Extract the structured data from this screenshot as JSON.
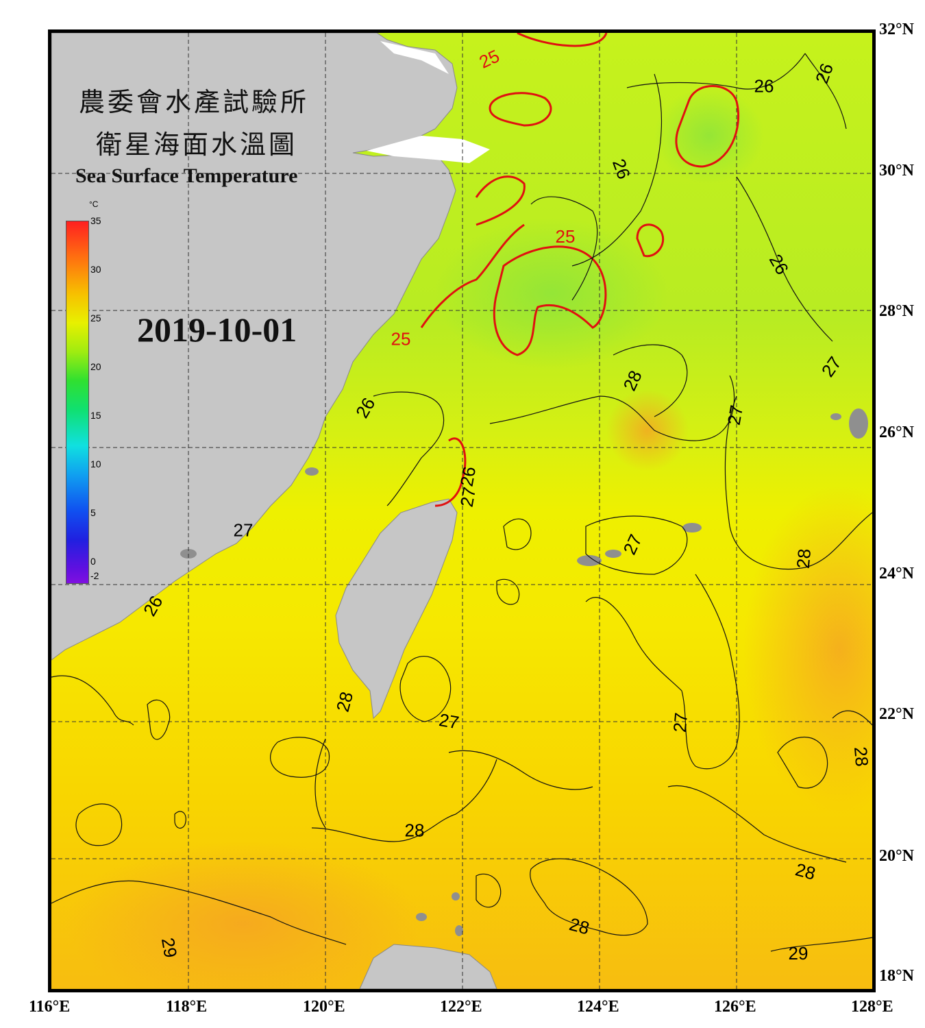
{
  "title": {
    "zh_line1": "農委會水產試驗所",
    "zh_line2": "衛星海面水溫圖",
    "en": "Sea Surface Temperature"
  },
  "date": "2019-10-01",
  "colorbar": {
    "unit": "°C",
    "ticks": [
      "35",
      "30",
      "25",
      "20",
      "15",
      "10",
      "5",
      "0",
      "-2"
    ]
  },
  "axes": {
    "lon_labels": [
      "116°E",
      "118°E",
      "120°E",
      "122°E",
      "124°E",
      "126°E",
      "128°E"
    ],
    "lat_labels": [
      "32°N",
      "30°N",
      "28°N",
      "26°N",
      "24°N",
      "22°N",
      "20°N",
      "18°N"
    ]
  },
  "isotherm_labels": [
    {
      "text": "25",
      "lon": 122.4,
      "lat": 31.6,
      "color": "#e01010",
      "rot": -25
    },
    {
      "text": "25",
      "lon": 123.5,
      "lat": 29.0,
      "color": "#e01010",
      "rot": 0
    },
    {
      "text": "25",
      "lon": 121.1,
      "lat": 27.5,
      "color": "#e01010",
      "rot": 0
    },
    {
      "text": "26",
      "lon": 126.4,
      "lat": 31.2,
      "color": "#000000",
      "rot": 0
    },
    {
      "text": "26",
      "lon": 127.3,
      "lat": 31.4,
      "color": "#000000",
      "rot": -70
    },
    {
      "text": "26",
      "lon": 124.3,
      "lat": 30.0,
      "color": "#000000",
      "rot": 70
    },
    {
      "text": "26",
      "lon": 126.6,
      "lat": 28.6,
      "color": "#000000",
      "rot": 60
    },
    {
      "text": "26",
      "lon": 120.6,
      "lat": 26.5,
      "color": "#000000",
      "rot": -60
    },
    {
      "text": "26",
      "lon": 122.1,
      "lat": 25.5,
      "color": "#000000",
      "rot": -80
    },
    {
      "text": "27",
      "lon": 122.1,
      "lat": 25.2,
      "color": "#000000",
      "rot": -80
    },
    {
      "text": "27",
      "lon": 127.4,
      "lat": 27.1,
      "color": "#000000",
      "rot": -55
    },
    {
      "text": "27",
      "lon": 126.0,
      "lat": 26.4,
      "color": "#000000",
      "rot": -80
    },
    {
      "text": "27",
      "lon": 124.5,
      "lat": 24.5,
      "color": "#000000",
      "rot": -65
    },
    {
      "text": "27",
      "lon": 121.8,
      "lat": 21.9,
      "color": "#000000",
      "rot": 10
    },
    {
      "text": "27",
      "lon": 125.2,
      "lat": 21.9,
      "color": "#000000",
      "rot": -85
    },
    {
      "text": "27",
      "lon": 118.8,
      "lat": 24.7,
      "color": "#000000",
      "rot": 0
    },
    {
      "text": "28",
      "lon": 124.5,
      "lat": 26.9,
      "color": "#000000",
      "rot": -65
    },
    {
      "text": "28",
      "lon": 127.0,
      "lat": 24.3,
      "color": "#000000",
      "rot": -85
    },
    {
      "text": "28",
      "lon": 120.3,
      "lat": 22.2,
      "color": "#000000",
      "rot": -75
    },
    {
      "text": "28",
      "lon": 127.8,
      "lat": 21.4,
      "color": "#000000",
      "rot": 85
    },
    {
      "text": "28",
      "lon": 121.3,
      "lat": 20.3,
      "color": "#000000",
      "rot": 0
    },
    {
      "text": "28",
      "lon": 127.0,
      "lat": 19.7,
      "color": "#000000",
      "rot": 15
    },
    {
      "text": "28",
      "lon": 123.7,
      "lat": 18.9,
      "color": "#000000",
      "rot": 15
    },
    {
      "text": "29",
      "lon": 126.9,
      "lat": 18.5,
      "color": "#000000",
      "rot": 0
    },
    {
      "text": "29",
      "lon": 117.7,
      "lat": 18.6,
      "color": "#000000",
      "rot": 80
    },
    {
      "text": "26",
      "lon": 117.5,
      "lat": 23.6,
      "color": "#000000",
      "rot": -60
    }
  ]
}
